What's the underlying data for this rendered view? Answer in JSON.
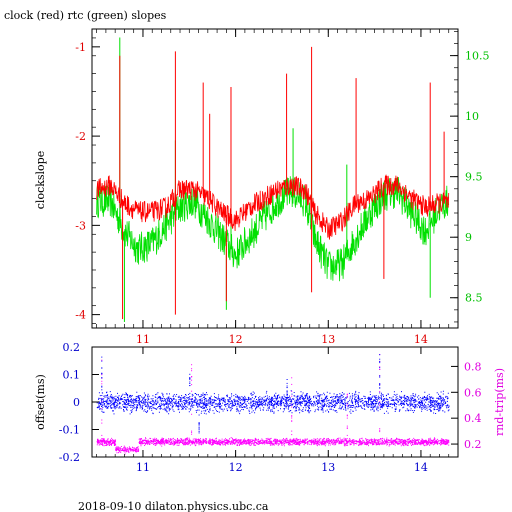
{
  "footer": {
    "text": "2018-09-10  dilaton.physics.ubc.ca"
  },
  "colors": {
    "clock": "#ff0000",
    "rtc": "#00e000",
    "offset": "#0000ff",
    "rndtrip": "#ff00ff",
    "red_axis": "#e00000",
    "green_axis": "#00c000",
    "blue_axis": "#0000cc",
    "mag_axis": "#e000e0"
  },
  "chart_data": [
    {
      "type": "line",
      "title": "clock (red) rtc (green) slopes",
      "xlabel": "",
      "ylabel": "clockslope",
      "xlim": [
        10.45,
        14.4
      ],
      "ylim": [
        -4.15,
        -0.8
      ],
      "y2lim": [
        8.25,
        10.72
      ],
      "x_ticks": [
        "11",
        "12",
        "13",
        "14"
      ],
      "y_ticks": [
        "-1",
        "-2",
        "-3",
        "-4"
      ],
      "y2_ticks": [
        "10.5",
        "10",
        "9.5",
        "9",
        "8.5"
      ],
      "series": [
        {
          "name": "clock",
          "axis": "left",
          "x": [
            10.5,
            10.65,
            10.8,
            10.95,
            11.1,
            11.25,
            11.4,
            11.55,
            11.7,
            11.85,
            12.0,
            12.15,
            12.3,
            12.45,
            12.6,
            12.75,
            12.85,
            13.0,
            13.15,
            13.3,
            13.45,
            13.6,
            13.75,
            13.9,
            14.05,
            14.2,
            14.3
          ],
          "y": [
            -2.6,
            -2.55,
            -2.75,
            -2.85,
            -2.85,
            -2.8,
            -2.6,
            -2.6,
            -2.7,
            -2.85,
            -2.95,
            -2.8,
            -2.7,
            -2.6,
            -2.55,
            -2.6,
            -2.85,
            -3.05,
            -2.95,
            -2.75,
            -2.7,
            -2.55,
            -2.55,
            -2.7,
            -2.8,
            -2.75,
            -2.75
          ],
          "spikes": [
            [
              10.75,
              -1.1
            ],
            [
              11.35,
              -1.05
            ],
            [
              11.65,
              -1.4
            ],
            [
              11.72,
              -1.75
            ],
            [
              11.95,
              -1.45
            ],
            [
              12.55,
              -1.3
            ],
            [
              12.82,
              -1.0
            ],
            [
              13.3,
              -1.35
            ],
            [
              14.1,
              -1.4
            ],
            [
              14.25,
              -1.95
            ],
            [
              10.78,
              -4.05
            ],
            [
              11.35,
              -4.0
            ],
            [
              11.9,
              -3.85
            ],
            [
              12.82,
              -3.75
            ],
            [
              13.6,
              -3.6
            ]
          ]
        },
        {
          "name": "rtc",
          "axis": "right",
          "x": [
            10.5,
            10.65,
            10.8,
            10.95,
            11.1,
            11.25,
            11.4,
            11.55,
            11.7,
            11.85,
            12.0,
            12.15,
            12.3,
            12.45,
            12.6,
            12.75,
            12.85,
            13.0,
            13.15,
            13.3,
            13.45,
            13.6,
            13.75,
            13.9,
            14.05,
            14.2,
            14.3
          ],
          "y": [
            9.3,
            9.3,
            9.05,
            8.9,
            8.95,
            9.1,
            9.25,
            9.3,
            9.15,
            9.0,
            8.85,
            9.0,
            9.15,
            9.3,
            9.38,
            9.3,
            9.0,
            8.75,
            8.78,
            9.0,
            9.2,
            9.35,
            9.38,
            9.2,
            9.05,
            9.25,
            9.3
          ],
          "spikes": [
            [
              10.75,
              10.65
            ],
            [
              11.35,
              9.8
            ],
            [
              11.95,
              9.6
            ],
            [
              12.62,
              9.9
            ],
            [
              12.82,
              9.8
            ],
            [
              13.2,
              9.6
            ],
            [
              14.1,
              8.5
            ],
            [
              11.9,
              8.4
            ],
            [
              10.8,
              8.3
            ]
          ]
        }
      ]
    },
    {
      "type": "scatter",
      "title": "",
      "xlabel": "",
      "ylabel": "offset(ms)",
      "y2label": "rnd-trip(ms)",
      "xlim": [
        10.45,
        14.4
      ],
      "ylim": [
        -0.2,
        0.2
      ],
      "y2lim": [
        0.1,
        0.95
      ],
      "x_ticks": [
        "11",
        "12",
        "13",
        "14"
      ],
      "y_ticks": [
        "0.2",
        "0.1",
        "0",
        "-0.1",
        "-0.2"
      ],
      "y2_ticks": [
        "0.8",
        "0.6",
        "0.4",
        "0.2"
      ],
      "series": [
        {
          "name": "offset",
          "axis": "left",
          "x_range": [
            10.5,
            14.3
          ],
          "center": 0.0,
          "spread": 0.02,
          "outliers": [
            [
              10.55,
              0.17
            ],
            [
              11.5,
              0.11
            ],
            [
              12.55,
              0.09
            ],
            [
              13.55,
              0.18
            ],
            [
              11.6,
              -0.12
            ]
          ]
        },
        {
          "name": "rnd-trip",
          "axis": "right",
          "x_range": [
            10.5,
            14.3
          ],
          "center": 0.22,
          "spread": 0.015,
          "dip": [
            10.7,
            10.95,
            0.16
          ],
          "outliers": [
            [
              10.55,
              0.9
            ],
            [
              11.52,
              0.82
            ],
            [
              12.6,
              0.72
            ],
            [
              13.55,
              0.92
            ],
            [
              13.2,
              0.62
            ]
          ]
        }
      ]
    }
  ]
}
